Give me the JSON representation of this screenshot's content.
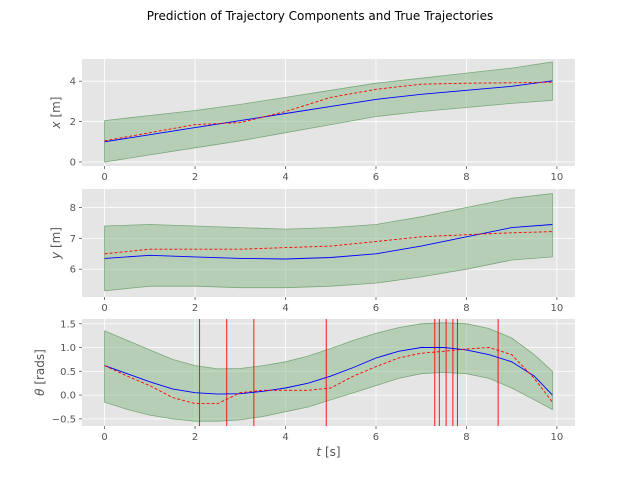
{
  "figure_title": "Prediction of Trajectory Components and True Trajectories",
  "colors": {
    "panel_bg": "#e5e5e5",
    "grid": "#ffffff",
    "band_fill": "#8fbc8f",
    "band_edge": "#7aa87a",
    "mean_line": "#0000ff",
    "true_line": "#ff0000",
    "event_line": "#ff0000"
  },
  "chart_data": [
    {
      "type": "line",
      "ylabel": "x [m]",
      "ylabel_parts": {
        "sym": "x",
        "unit": " [m]"
      },
      "xlim": [
        -0.5,
        10.4
      ],
      "ylim": [
        -0.2,
        5.1
      ],
      "xticks": [
        0,
        2,
        4,
        6,
        8,
        10
      ],
      "yticks": [
        0,
        2,
        4
      ],
      "x": [
        0,
        1,
        2,
        3,
        4,
        5,
        6,
        7,
        8,
        9,
        9.9
      ],
      "series": [
        {
          "kind": "mean",
          "values": [
            1.0,
            1.35,
            1.7,
            2.05,
            2.4,
            2.75,
            3.1,
            3.35,
            3.55,
            3.75,
            4.02
          ]
        },
        {
          "kind": "true",
          "values": [
            1.05,
            1.45,
            1.85,
            1.95,
            2.5,
            3.2,
            3.6,
            3.85,
            3.9,
            3.92,
            3.95
          ]
        }
      ],
      "band": {
        "lower": [
          0.0,
          0.35,
          0.7,
          1.05,
          1.45,
          1.85,
          2.25,
          2.5,
          2.7,
          2.9,
          3.05
        ],
        "upper": [
          2.05,
          2.3,
          2.55,
          2.85,
          3.2,
          3.55,
          3.9,
          4.15,
          4.4,
          4.65,
          4.95
        ]
      },
      "event_x": []
    },
    {
      "type": "line",
      "ylabel": "y [m]",
      "ylabel_parts": {
        "sym": "y",
        "unit": " [m]"
      },
      "xlim": [
        -0.5,
        10.4
      ],
      "ylim": [
        5.1,
        8.6
      ],
      "xticks": [
        0,
        2,
        4,
        6,
        8,
        10
      ],
      "yticks": [
        6,
        7,
        8
      ],
      "x": [
        0,
        1,
        2,
        3,
        4,
        5,
        6,
        7,
        8,
        9,
        9.9
      ],
      "series": [
        {
          "kind": "mean",
          "values": [
            6.35,
            6.45,
            6.4,
            6.35,
            6.33,
            6.38,
            6.5,
            6.75,
            7.05,
            7.35,
            7.45
          ]
        },
        {
          "kind": "true",
          "values": [
            6.5,
            6.65,
            6.65,
            6.65,
            6.7,
            6.75,
            6.9,
            7.05,
            7.12,
            7.18,
            7.22
          ]
        }
      ],
      "band": {
        "lower": [
          5.3,
          5.45,
          5.45,
          5.4,
          5.4,
          5.45,
          5.55,
          5.75,
          6.0,
          6.3,
          6.4
        ],
        "upper": [
          7.4,
          7.45,
          7.4,
          7.35,
          7.3,
          7.35,
          7.45,
          7.7,
          8.0,
          8.3,
          8.45
        ]
      },
      "event_x": []
    },
    {
      "type": "line",
      "ylabel": "θ [rads]",
      "ylabel_parts": {
        "sym": "θ",
        "unit": " [rads]"
      },
      "xlabel": "t [s]",
      "xlabel_parts": {
        "sym": "t",
        "unit": " [s]"
      },
      "xlim": [
        -0.5,
        10.4
      ],
      "ylim": [
        -0.65,
        1.6
      ],
      "xticks": [
        0,
        2,
        4,
        6,
        8,
        10
      ],
      "yticks": [
        -0.5,
        0.0,
        0.5,
        1.0,
        1.5
      ],
      "ytick_labels": [
        "−0.5",
        "0.0",
        "0.5",
        "1.0",
        "1.5"
      ],
      "x": [
        0,
        0.5,
        1,
        1.5,
        2,
        2.5,
        3,
        3.5,
        4,
        4.5,
        5,
        5.5,
        6,
        6.5,
        7,
        7.5,
        8,
        8.5,
        9,
        9.5,
        9.9
      ],
      "series": [
        {
          "kind": "mean",
          "values": [
            0.62,
            0.45,
            0.28,
            0.13,
            0.05,
            0.02,
            0.03,
            0.08,
            0.15,
            0.25,
            0.4,
            0.58,
            0.78,
            0.92,
            1.0,
            1.0,
            0.95,
            0.85,
            0.7,
            0.4,
            0.0
          ]
        },
        {
          "kind": "true",
          "values": [
            0.62,
            0.4,
            0.2,
            -0.05,
            -0.18,
            -0.18,
            0.05,
            0.1,
            0.1,
            0.1,
            0.15,
            0.4,
            0.6,
            0.78,
            0.88,
            0.92,
            0.97,
            1.0,
            0.85,
            0.35,
            -0.15
          ]
        }
      ],
      "band": {
        "lower": [
          -0.15,
          -0.3,
          -0.42,
          -0.5,
          -0.55,
          -0.55,
          -0.52,
          -0.45,
          -0.35,
          -0.25,
          -0.1,
          0.05,
          0.2,
          0.35,
          0.45,
          0.48,
          0.45,
          0.35,
          0.15,
          -0.1,
          -0.3
        ],
        "upper": [
          1.35,
          1.15,
          0.95,
          0.75,
          0.62,
          0.55,
          0.56,
          0.62,
          0.7,
          0.82,
          0.98,
          1.15,
          1.3,
          1.42,
          1.5,
          1.52,
          1.5,
          1.4,
          1.2,
          0.85,
          0.5
        ]
      },
      "event_x": [
        2.1,
        2.7,
        3.3,
        4.9,
        7.3,
        7.4,
        7.55,
        7.7,
        7.8,
        8.7
      ]
    }
  ]
}
